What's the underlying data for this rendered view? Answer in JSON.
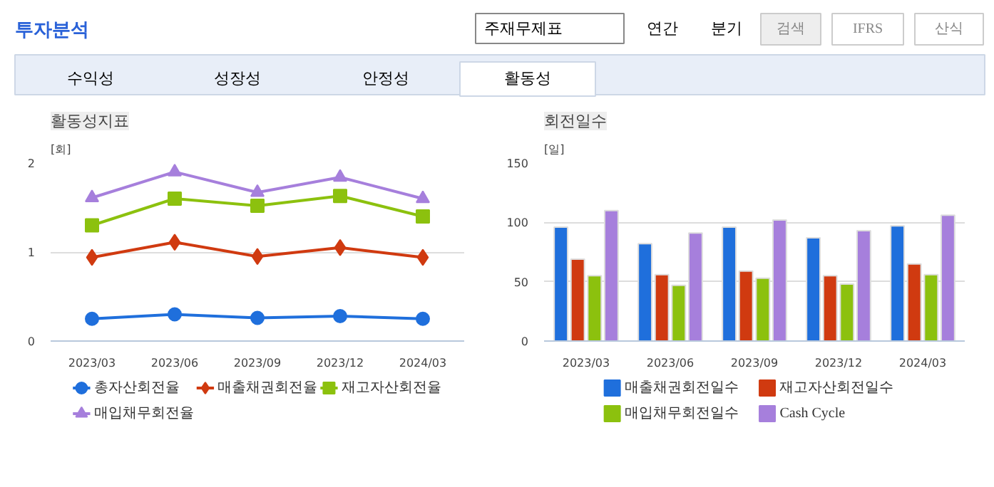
{
  "chart_data": [
    {
      "type": "other",
      "title": "투자분석",
      "annotations": [
        "주재무제표",
        "연간",
        "분기",
        "검색",
        "IFRS",
        "산식",
        "수익성",
        "성장성",
        "안정성",
        "활동성"
      ]
    },
    {
      "type": "line",
      "title": "활동성지표",
      "ylabel": "[회]",
      "categories": [
        "2023/03",
        "2023/06",
        "2023/09",
        "2023/12",
        "2024/03"
      ],
      "ylim": [
        0,
        2
      ],
      "yticks": [
        0,
        1,
        2
      ],
      "grid": "y",
      "legend": "bottom",
      "line_style": "solid",
      "series": [
        {
          "name": "총자산회전율",
          "color": "#1f6fdc",
          "marker": "circle",
          "values": [
            0.25,
            0.3,
            0.26,
            0.28,
            0.25
          ]
        },
        {
          "name": "매출채권회전율",
          "color": "#d03a10",
          "marker": "diamond",
          "values": [
            0.94,
            1.11,
            0.95,
            1.05,
            0.94
          ]
        },
        {
          "name": "재고자산회전율",
          "color": "#8cc10e",
          "marker": "square",
          "values": [
            1.3,
            1.6,
            1.52,
            1.63,
            1.4
          ]
        },
        {
          "name": "매입채무회전율",
          "color": "#a67fdc",
          "marker": "triangle",
          "values": [
            1.61,
            1.9,
            1.67,
            1.84,
            1.6
          ]
        }
      ]
    },
    {
      "type": "bar",
      "title": "회전일수",
      "ylabel": "[일]",
      "categories": [
        "2023/03",
        "2023/06",
        "2023/09",
        "2023/12",
        "2024/03"
      ],
      "ylim": [
        0,
        150
      ],
      "yticks": [
        0,
        50,
        100,
        150
      ],
      "grid": "y",
      "legend": "bottom",
      "series": [
        {
          "name": "매출채권회전일수",
          "color": "#1f6fdc",
          "values": [
            96,
            82,
            96,
            87,
            97
          ]
        },
        {
          "name": "재고자산회전일수",
          "color": "#d03a10",
          "values": [
            69,
            56,
            59,
            55,
            65
          ]
        },
        {
          "name": "매입채무회전일수",
          "color": "#8cc10e",
          "values": [
            55,
            47,
            53,
            48,
            56
          ]
        },
        {
          "name": "Cash Cycle",
          "color": "#a67fdc",
          "values": [
            110,
            91,
            102,
            93,
            106
          ]
        }
      ]
    }
  ]
}
